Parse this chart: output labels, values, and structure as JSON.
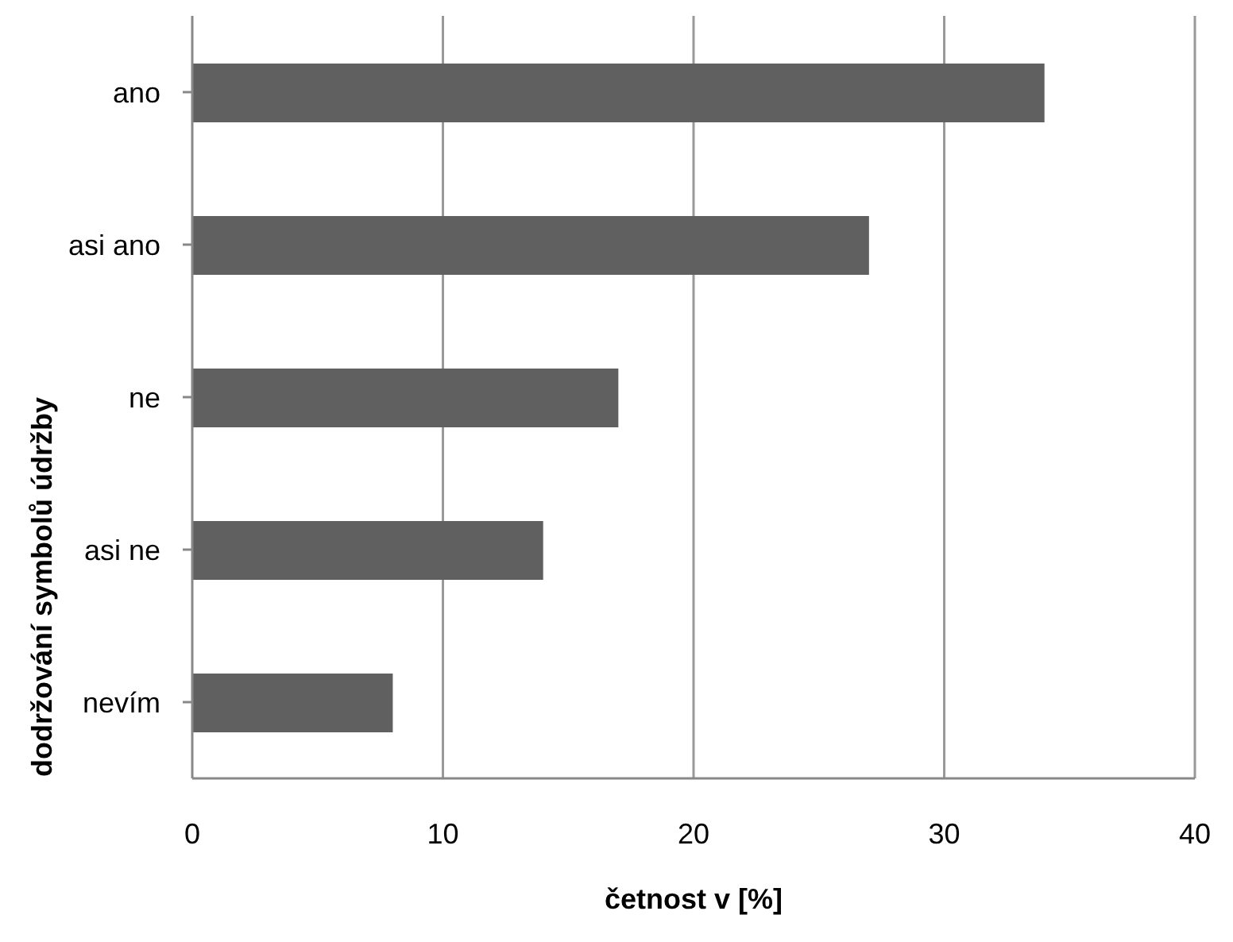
{
  "chart_data": {
    "type": "bar",
    "orientation": "horizontal",
    "xlabel": "četnost v [%]",
    "ylabel": "dodržování symbolů údržby",
    "categories": [
      "ano",
      "asi ano",
      "ne",
      "asi ne",
      "nevím"
    ],
    "values": [
      34,
      27,
      17,
      14,
      8
    ],
    "color": "#606060",
    "xlim": [
      0,
      40
    ],
    "xticks": [
      0,
      10,
      20,
      30,
      40
    ],
    "grid": "x",
    "legend": false
  }
}
